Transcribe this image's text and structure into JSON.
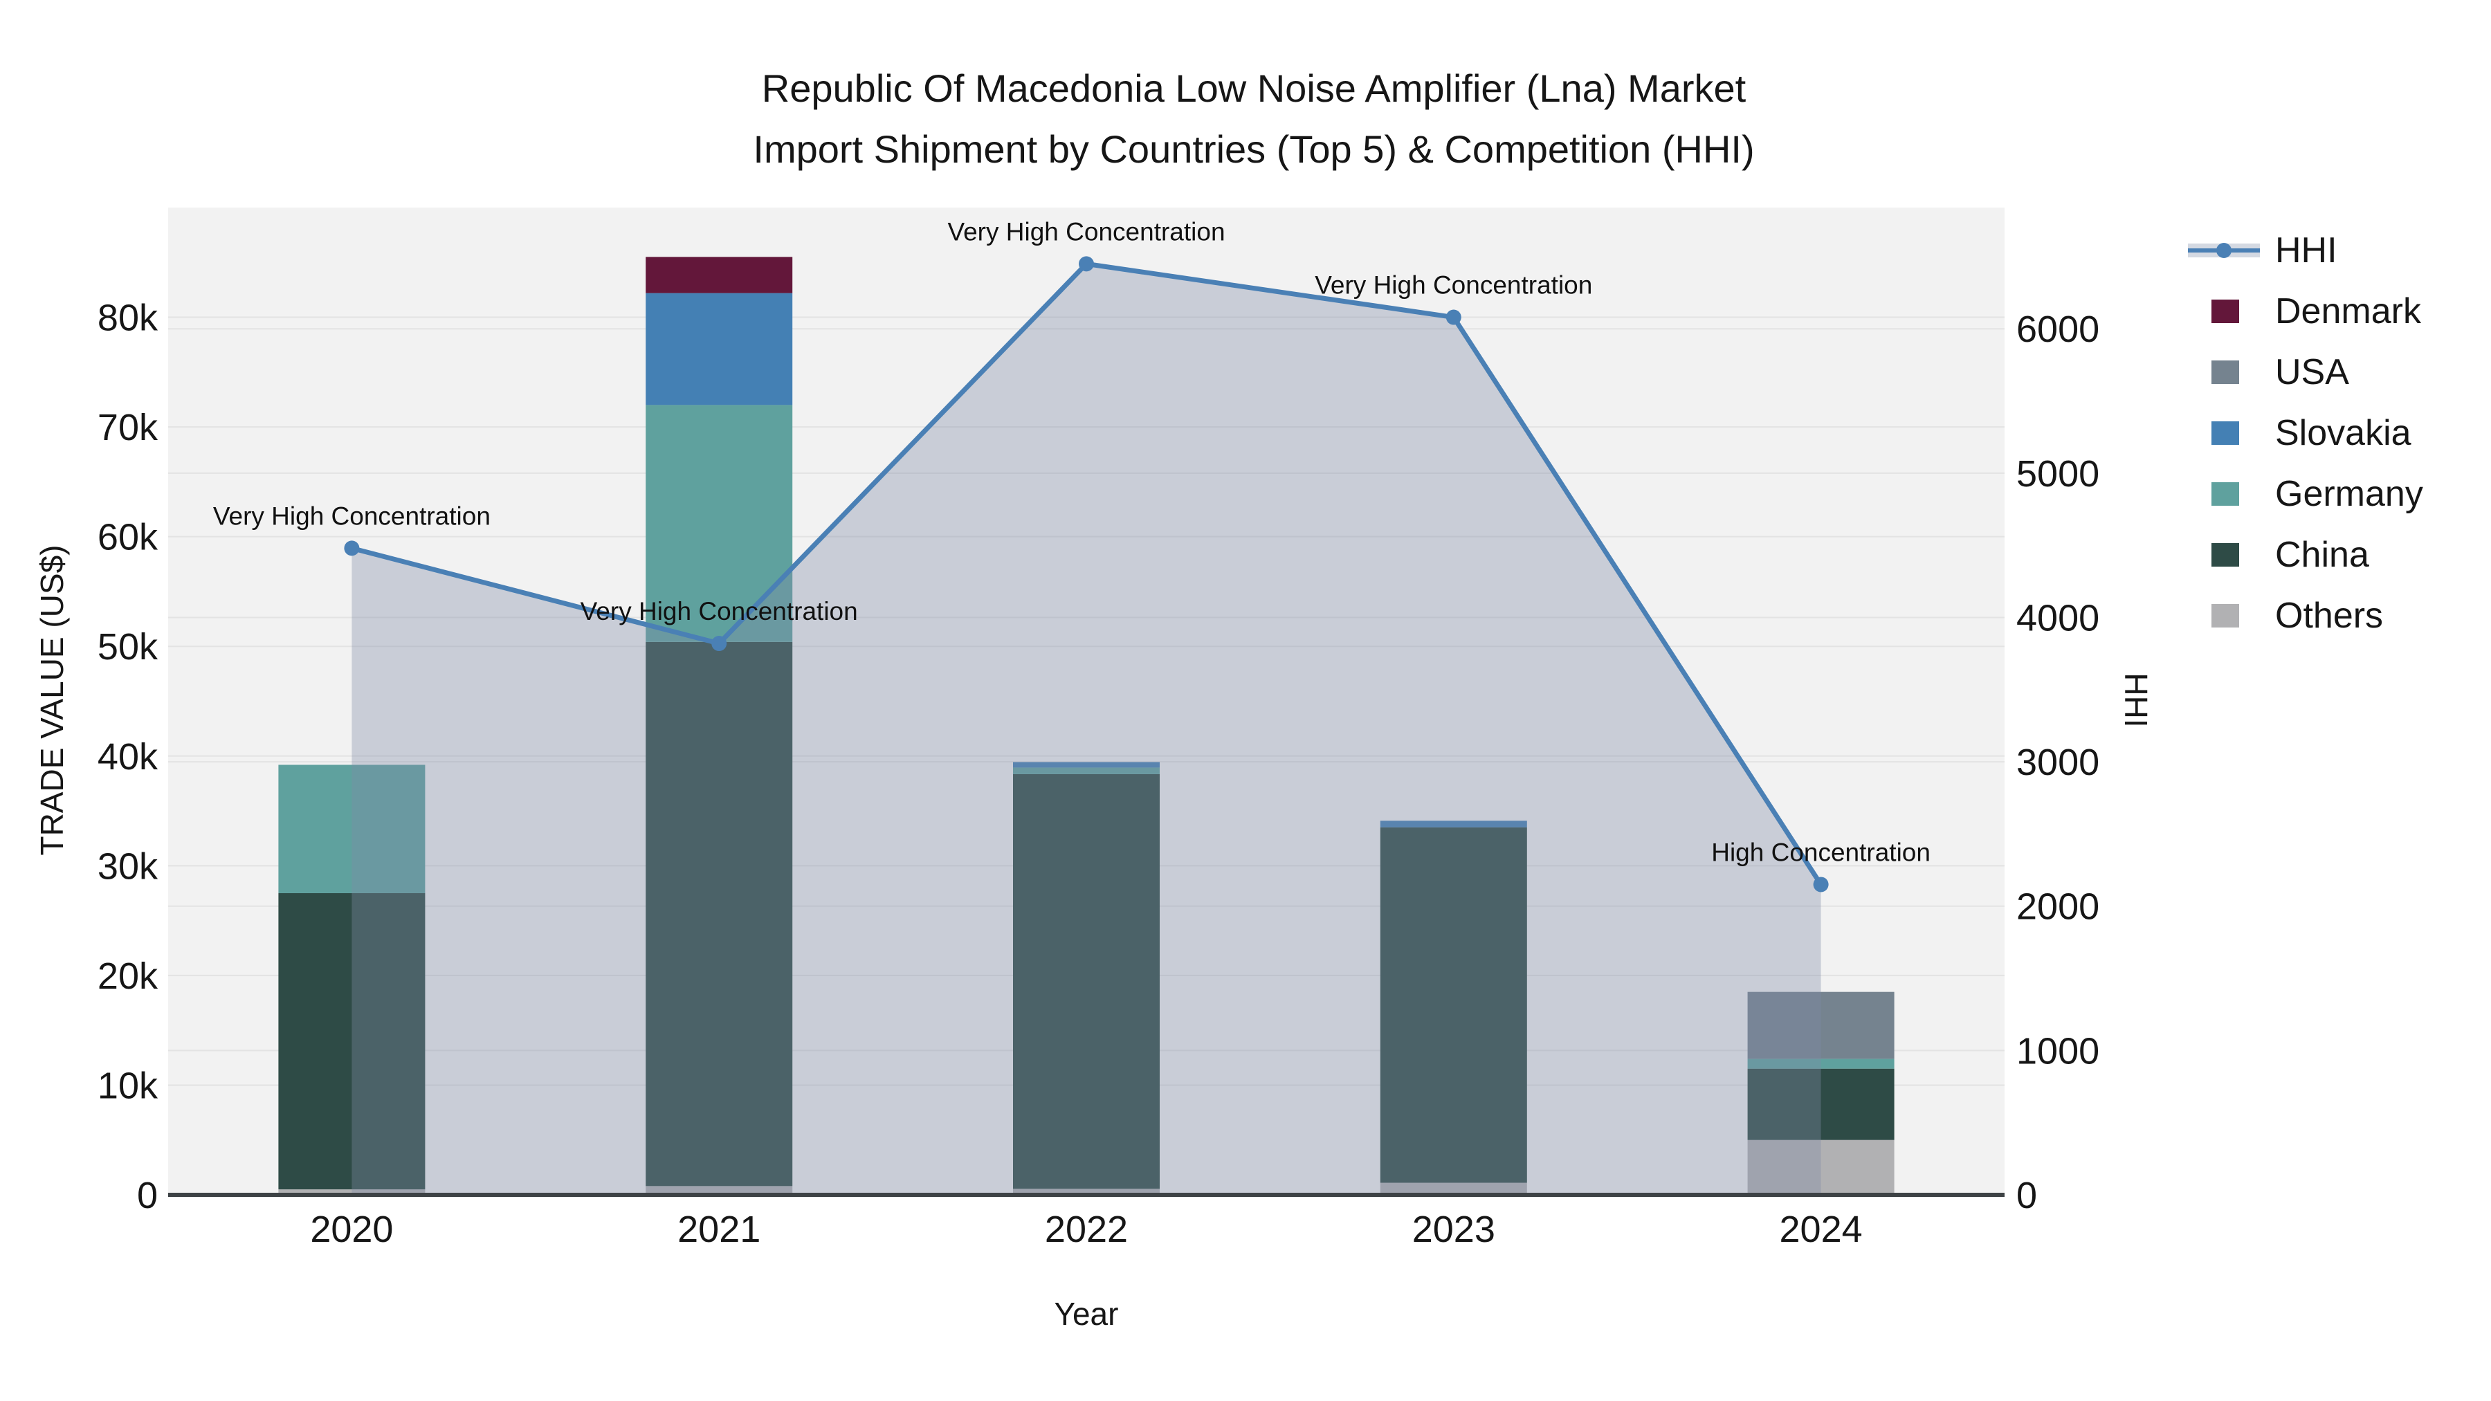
{
  "title": {
    "line1": "Republic Of Macedonia Low Noise Amplifier (Lna) Market",
    "line2": "Import Shipment by Countries (Top 5) & Competition (HHI)"
  },
  "axes": {
    "y_left": {
      "title": "TRADE VALUE (US$)",
      "ticks": [
        {
          "v": 0,
          "label": "0"
        },
        {
          "v": 10000,
          "label": "10k"
        },
        {
          "v": 20000,
          "label": "20k"
        },
        {
          "v": 30000,
          "label": "30k"
        },
        {
          "v": 40000,
          "label": "40k"
        },
        {
          "v": 50000,
          "label": "50k"
        },
        {
          "v": 60000,
          "label": "60k"
        },
        {
          "v": 70000,
          "label": "70k"
        },
        {
          "v": 80000,
          "label": "80k"
        }
      ]
    },
    "y_right": {
      "title": "HHI",
      "ticks": [
        {
          "v": 0,
          "label": "0"
        },
        {
          "v": 1000,
          "label": "1000"
        },
        {
          "v": 2000,
          "label": "2000"
        },
        {
          "v": 3000,
          "label": "3000"
        },
        {
          "v": 4000,
          "label": "4000"
        },
        {
          "v": 5000,
          "label": "5000"
        },
        {
          "v": 6000,
          "label": "6000"
        }
      ]
    },
    "x": {
      "title": "Year"
    }
  },
  "legend": {
    "items": [
      {
        "label": "HHI",
        "type": "line",
        "color": "#4a80b5",
        "band": "#d4d9e2"
      },
      {
        "label": "Denmark",
        "type": "swatch",
        "color": "#63173a"
      },
      {
        "label": "USA",
        "type": "swatch",
        "color": "#75838f"
      },
      {
        "label": "Slovakia",
        "type": "swatch",
        "color": "#4480b4"
      },
      {
        "label": "Germany",
        "type": "swatch",
        "color": "#5fa19e"
      },
      {
        "label": "China",
        "type": "swatch",
        "color": "#2e4b46"
      },
      {
        "label": "Others",
        "type": "swatch",
        "color": "#b1b1b3"
      }
    ]
  },
  "chart_data": {
    "type": "bar+line",
    "categories": [
      "2020",
      "2021",
      "2022",
      "2023",
      "2024"
    ],
    "bar_stack_order_bottom_to_top": [
      "Others",
      "China",
      "Germany",
      "Slovakia",
      "USA",
      "Denmark"
    ],
    "series": [
      {
        "name": "Others",
        "color": "#b1b1b3",
        "values": [
          500,
          800,
          550,
          1100,
          5000
        ]
      },
      {
        "name": "China",
        "color": "#2e4b46",
        "values": [
          27000,
          49600,
          37800,
          32400,
          6500
        ]
      },
      {
        "name": "Germany",
        "color": "#5fa19e",
        "values": [
          11700,
          21600,
          600,
          0,
          900
        ]
      },
      {
        "name": "Slovakia",
        "color": "#4480b4",
        "values": [
          0,
          10200,
          500,
          600,
          0
        ]
      },
      {
        "name": "USA",
        "color": "#75838f",
        "values": [
          0,
          0,
          0,
          0,
          6100
        ]
      },
      {
        "name": "Denmark",
        "color": "#63173a",
        "values": [
          0,
          3300,
          0,
          0,
          0
        ]
      }
    ],
    "line_series": {
      "name": "HHI",
      "axis": "right",
      "color": "#4a80b5",
      "area_fill": "rgba(127,139,165,0.36)",
      "values": [
        4480,
        3820,
        6450,
        6080,
        2150
      ]
    },
    "annotations": [
      {
        "year": "2020",
        "text": "Very High Concentration"
      },
      {
        "year": "2021",
        "text": "Very High Concentration"
      },
      {
        "year": "2022",
        "text": "Very High Concentration"
      },
      {
        "year": "2023",
        "text": "Very High Concentration"
      },
      {
        "year": "2024",
        "text": "High Concentration"
      }
    ],
    "xlabel": "Year",
    "ylabel_left": "TRADE VALUE (US$)",
    "ylabel_right": "HHI",
    "ylim_left": [
      0,
      90000
    ],
    "ylim_right": [
      0,
      6840
    ],
    "grid": true,
    "legend_position": "right"
  },
  "colors": {
    "plot_bg": "#f2f2f2",
    "gridline": "#e3e3e3",
    "axis_line": "#3d4245",
    "text": "#161616"
  }
}
